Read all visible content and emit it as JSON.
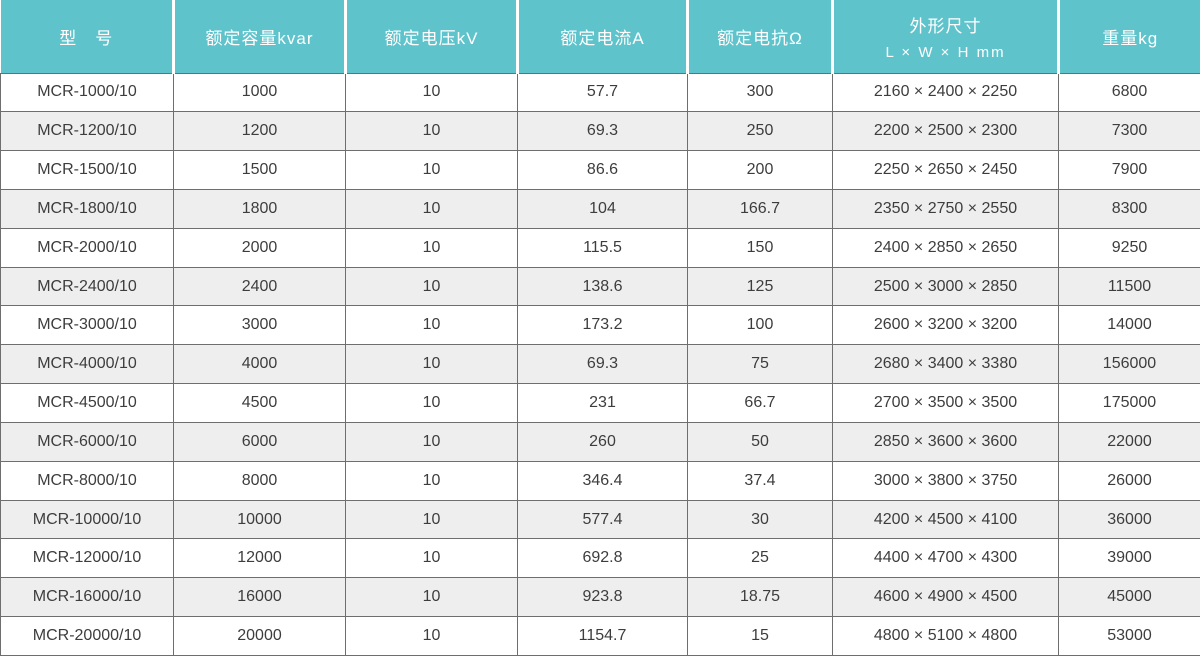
{
  "table": {
    "title_semantic": "MCR reactor specification table",
    "colors": {
      "header_bg": "#5fc3cc",
      "header_text": "#ffffff",
      "grid_border": "#6e6e6e",
      "row_odd_bg": "#ffffff",
      "row_even_bg": "#eeeeee",
      "body_text": "#3d3d3d"
    },
    "columns": [
      {
        "key": "model",
        "label": "型　号"
      },
      {
        "key": "capacity",
        "label": "额定容量kvar"
      },
      {
        "key": "voltage",
        "label": "额定电压kV"
      },
      {
        "key": "current",
        "label": "额定电流A"
      },
      {
        "key": "reactance",
        "label": "额定电抗Ω"
      },
      {
        "key": "dimensions",
        "label": "外形尺寸",
        "sublabel": "L × W × H mm"
      },
      {
        "key": "weight",
        "label": "重量kg"
      }
    ],
    "rows": [
      {
        "model": "MCR-1000/10",
        "capacity": "1000",
        "voltage": "10",
        "current": "57.7",
        "reactance": "300",
        "dimensions": "2160 × 2400 × 2250",
        "weight": "6800"
      },
      {
        "model": "MCR-1200/10",
        "capacity": "1200",
        "voltage": "10",
        "current": "69.3",
        "reactance": "250",
        "dimensions": "2200 × 2500 × 2300",
        "weight": "7300"
      },
      {
        "model": "MCR-1500/10",
        "capacity": "1500",
        "voltage": "10",
        "current": "86.6",
        "reactance": "200",
        "dimensions": "2250 × 2650 × 2450",
        "weight": "7900"
      },
      {
        "model": "MCR-1800/10",
        "capacity": "1800",
        "voltage": "10",
        "current": "104",
        "reactance": "166.7",
        "dimensions": "2350 × 2750 × 2550",
        "weight": "8300"
      },
      {
        "model": "MCR-2000/10",
        "capacity": "2000",
        "voltage": "10",
        "current": "115.5",
        "reactance": "150",
        "dimensions": "2400 × 2850 × 2650",
        "weight": "9250"
      },
      {
        "model": "MCR-2400/10",
        "capacity": "2400",
        "voltage": "10",
        "current": "138.6",
        "reactance": "125",
        "dimensions": "2500 × 3000 × 2850",
        "weight": "11500"
      },
      {
        "model": "MCR-3000/10",
        "capacity": "3000",
        "voltage": "10",
        "current": "173.2",
        "reactance": "100",
        "dimensions": "2600 × 3200 × 3200",
        "weight": "14000"
      },
      {
        "model": "MCR-4000/10",
        "capacity": "4000",
        "voltage": "10",
        "current": "69.3",
        "reactance": "75",
        "dimensions": "2680 × 3400 × 3380",
        "weight": "156000"
      },
      {
        "model": "MCR-4500/10",
        "capacity": "4500",
        "voltage": "10",
        "current": "231",
        "reactance": "66.7",
        "dimensions": "2700 × 3500 × 3500",
        "weight": "175000"
      },
      {
        "model": "MCR-6000/10",
        "capacity": "6000",
        "voltage": "10",
        "current": "260",
        "reactance": "50",
        "dimensions": "2850 × 3600 × 3600",
        "weight": "22000"
      },
      {
        "model": "MCR-8000/10",
        "capacity": "8000",
        "voltage": "10",
        "current": "346.4",
        "reactance": "37.4",
        "dimensions": "3000 × 3800 × 3750",
        "weight": "26000"
      },
      {
        "model": "MCR-10000/10",
        "capacity": "10000",
        "voltage": "10",
        "current": "577.4",
        "reactance": "30",
        "dimensions": "4200 × 4500 × 4100",
        "weight": "36000"
      },
      {
        "model": "MCR-12000/10",
        "capacity": "12000",
        "voltage": "10",
        "current": "692.8",
        "reactance": "25",
        "dimensions": "4400 × 4700 × 4300",
        "weight": "39000"
      },
      {
        "model": "MCR-16000/10",
        "capacity": "16000",
        "voltage": "10",
        "current": "923.8",
        "reactance": "18.75",
        "dimensions": "4600 × 4900 × 4500",
        "weight": "45000"
      },
      {
        "model": "MCR-20000/10",
        "capacity": "20000",
        "voltage": "10",
        "current": "1154.7",
        "reactance": "15",
        "dimensions": "4800 × 5100 × 4800",
        "weight": "53000"
      }
    ]
  }
}
